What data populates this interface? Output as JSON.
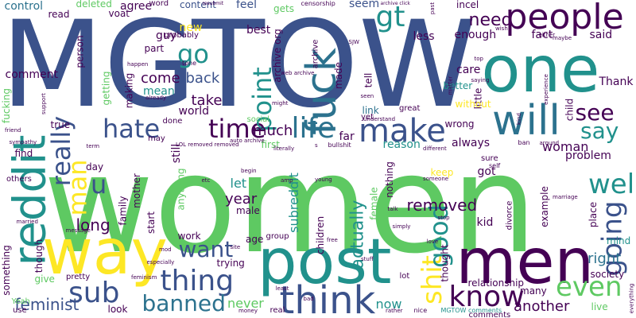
{
  "words": [
    {
      "text": "MGTOW",
      "color": "#3b528b"
    },
    {
      "text": "women",
      "color": "#5ec962"
    },
    {
      "text": "one",
      "color": "#21918c"
    },
    {
      "text": "post",
      "color": "#21918c"
    },
    {
      "text": "men",
      "color": "#440154"
    },
    {
      "text": "way",
      "color": "#fde725"
    },
    {
      "text": "people",
      "color": "#440154"
    },
    {
      "text": "reddit",
      "color": "#21918c"
    },
    {
      "text": "will",
      "color": "#2c728e"
    },
    {
      "text": "fuck",
      "color": "#2c728e"
    },
    {
      "text": "think",
      "color": "#3b528b"
    },
    {
      "text": "make",
      "color": "#3b528b"
    },
    {
      "text": "life",
      "color": "#2c728e"
    },
    {
      "text": "know",
      "color": "#440154"
    },
    {
      "text": "hate",
      "color": "#3b528b"
    },
    {
      "text": "time",
      "color": "#440154"
    },
    {
      "text": "thing",
      "color": "#3b528b"
    },
    {
      "text": "sub",
      "color": "#3b528b"
    },
    {
      "text": "even",
      "color": "#5ec962"
    },
    {
      "text": "see",
      "color": "#440154"
    },
    {
      "text": "say",
      "color": "#21918c"
    },
    {
      "text": "well",
      "color": "#21918c"
    },
    {
      "text": "going",
      "color": "#3b528b"
    },
    {
      "text": "shit",
      "color": "#fde725"
    },
    {
      "text": "gt",
      "color": "#21918c"
    },
    {
      "text": "go",
      "color": "#21918c"
    },
    {
      "text": "point",
      "color": "#21918c"
    },
    {
      "text": "good",
      "color": "#21918c"
    },
    {
      "text": "banned",
      "color": "#2c728e"
    },
    {
      "text": "want",
      "color": "#3b528b"
    },
    {
      "text": "really",
      "color": "#3b528b"
    },
    {
      "text": "man",
      "color": "#fde725"
    },
    {
      "text": "u",
      "color": "#3b528b"
    },
    {
      "text": "need",
      "color": "#440154"
    },
    {
      "text": "removed",
      "color": "#440154"
    },
    {
      "text": "long",
      "color": "#440154"
    },
    {
      "text": "feminist",
      "color": "#3b528b"
    },
    {
      "text": "much",
      "color": "#440154"
    },
    {
      "text": "come",
      "color": "#440154"
    },
    {
      "text": "back",
      "color": "#3b528b"
    },
    {
      "text": "take",
      "color": "#440154"
    },
    {
      "text": "right",
      "color": "#2c728e"
    },
    {
      "text": "another",
      "color": "#440154"
    },
    {
      "text": "actually",
      "color": "#21918c"
    },
    {
      "text": "subreddit",
      "color": "#21918c"
    },
    {
      "text": "let",
      "color": "#21918c"
    },
    {
      "text": "year",
      "color": "#440154"
    },
    {
      "text": "woman",
      "color": "#440154"
    },
    {
      "text": "said",
      "color": "#440154"
    },
    {
      "text": "Thank",
      "color": "#440154"
    },
    {
      "text": "never",
      "color": "#5ec962"
    },
    {
      "text": "now",
      "color": "#21918c"
    },
    {
      "text": "comment",
      "color": "#440154"
    },
    {
      "text": "deleted",
      "color": "#5ec962"
    },
    {
      "text": "agree",
      "color": "#440154"
    },
    {
      "text": "content",
      "color": "#3b528b"
    },
    {
      "text": "feel",
      "color": "#3b528b"
    },
    {
      "text": "gets",
      "color": "#5ec962"
    },
    {
      "text": "seem",
      "color": "#3b528b"
    },
    {
      "text": "incel",
      "color": "#440154"
    },
    {
      "text": "control",
      "color": "#2c728e"
    },
    {
      "text": "read",
      "color": "#440154"
    },
    {
      "text": "voat",
      "color": "#440154"
    },
    {
      "text": "word",
      "color": "#440154"
    },
    {
      "text": "enough",
      "color": "#440154"
    },
    {
      "text": "fact",
      "color": "#440154"
    },
    {
      "text": "less",
      "color": "#440154"
    },
    {
      "text": "guy",
      "color": "#440154"
    },
    {
      "text": "new",
      "color": "#fde725"
    },
    {
      "text": "best",
      "color": "#440154"
    },
    {
      "text": "part",
      "color": "#440154"
    },
    {
      "text": "made",
      "color": "#440154"
    },
    {
      "text": "tell",
      "color": "#440154"
    },
    {
      "text": "care",
      "color": "#440154"
    },
    {
      "text": "better",
      "color": "#21918c"
    },
    {
      "text": "mean",
      "color": "#21918c"
    },
    {
      "text": "link",
      "color": "#2c728e"
    },
    {
      "text": "wrong",
      "color": "#440154"
    },
    {
      "text": "child",
      "color": "#440154"
    },
    {
      "text": "little",
      "color": "#440154"
    },
    {
      "text": "without",
      "color": "#fde725"
    },
    {
      "text": "person",
      "color": "#440154"
    },
    {
      "text": "getting",
      "color": "#5ec962"
    },
    {
      "text": "making",
      "color": "#440154"
    },
    {
      "text": "world",
      "color": "#440154"
    },
    {
      "text": "fucking",
      "color": "#5ec962"
    },
    {
      "text": "true",
      "color": "#440154"
    },
    {
      "text": "first",
      "color": "#5ec962"
    },
    {
      "text": "far",
      "color": "#440154"
    },
    {
      "text": "reason",
      "color": "#21918c"
    },
    {
      "text": "always",
      "color": "#440154"
    },
    {
      "text": "problem",
      "color": "#440154"
    },
    {
      "text": "find",
      "color": "#440154"
    },
    {
      "text": "day",
      "color": "#440154"
    },
    {
      "text": "still",
      "color": "#440154"
    },
    {
      "text": "keep",
      "color": "#fde725"
    },
    {
      "text": "got",
      "color": "#440154"
    },
    {
      "text": "kid",
      "color": "#440154"
    },
    {
      "text": "others",
      "color": "#440154"
    },
    {
      "text": "family",
      "color": "#440154"
    },
    {
      "text": "mother",
      "color": "#440154"
    },
    {
      "text": "start",
      "color": "#440154"
    },
    {
      "text": "male",
      "color": "#440154"
    },
    {
      "text": "work",
      "color": "#440154"
    },
    {
      "text": "age",
      "color": "#440154"
    },
    {
      "text": "trying",
      "color": "#440154"
    },
    {
      "text": "children",
      "color": "#440154"
    },
    {
      "text": "female",
      "color": "#5ec962"
    },
    {
      "text": "thought",
      "color": "#440154"
    },
    {
      "text": "relationship",
      "color": "#440154"
    },
    {
      "text": "society",
      "color": "#440154"
    },
    {
      "text": "mind",
      "color": "#21918c"
    },
    {
      "text": "live",
      "color": "#5ec962"
    },
    {
      "text": "many",
      "color": "#440154"
    },
    {
      "text": "look",
      "color": "#440154"
    },
    {
      "text": "give",
      "color": "#5ec962"
    },
    {
      "text": "something",
      "color": "#440154"
    },
    {
      "text": "anything",
      "color": "#5ec962"
    },
    {
      "text": "place",
      "color": "#440154"
    },
    {
      "text": "example",
      "color": "#440154"
    },
    {
      "text": "divorce",
      "color": "#440154"
    },
    {
      "text": "nothing",
      "color": "#440154"
    },
    {
      "text": "though",
      "color": "#440154"
    },
    {
      "text": "pretty",
      "color": "#440154"
    },
    {
      "text": "Yeah",
      "color": "#5ec962"
    },
    {
      "text": "use",
      "color": "#440154"
    },
    {
      "text": "lot",
      "color": "#440154"
    },
    {
      "text": "group",
      "color": "#440154"
    },
    {
      "text": "comments",
      "color": "#440154"
    },
    {
      "text": "MGTOW comments",
      "color": "#21918c"
    },
    {
      "text": "archive org",
      "color": "#440154"
    },
    {
      "text": "archive",
      "color": "#440154"
    },
    {
      "text": "censorship",
      "color": "#440154"
    },
    {
      "text": "archive click",
      "color": "#440154"
    },
    {
      "text": "resubmit",
      "color": "#440154"
    },
    {
      "text": "probably",
      "color": "#440154"
    },
    {
      "text": "tone",
      "color": "#440154"
    },
    {
      "text": "web archive",
      "color": "#440154"
    },
    {
      "text": "SJW",
      "color": "#440154"
    },
    {
      "text": "seen",
      "color": "#440154"
    },
    {
      "text": "great",
      "color": "#440154"
    },
    {
      "text": "understand",
      "color": "#440154"
    },
    {
      "text": "yet",
      "color": "#440154"
    },
    {
      "text": "social",
      "color": "#5ec962"
    },
    {
      "text": "done",
      "color": "#440154"
    },
    {
      "text": "may",
      "color": "#440154"
    },
    {
      "text": "LOL removed removed",
      "color": "#440154"
    },
    {
      "text": "literally",
      "color": "#440154"
    },
    {
      "text": "bullshit",
      "color": "#440154"
    },
    {
      "text": "different",
      "color": "#440154"
    },
    {
      "text": "around",
      "color": "#440154"
    },
    {
      "text": "ban",
      "color": "#440154"
    },
    {
      "text": "sure",
      "color": "#440154"
    },
    {
      "text": "self",
      "color": "#440154"
    },
    {
      "text": "marriage",
      "color": "#440154"
    },
    {
      "text": "young",
      "color": "#440154"
    },
    {
      "text": "someone",
      "color": "#440154"
    },
    {
      "text": "talk",
      "color": "#440154"
    },
    {
      "text": "stop",
      "color": "#440154"
    },
    {
      "text": "simply",
      "color": "#440154"
    },
    {
      "text": "site",
      "color": "#440154"
    },
    {
      "text": "mod",
      "color": "#440154"
    },
    {
      "text": "especially",
      "color": "#440154"
    },
    {
      "text": "feminism",
      "color": "#440154"
    },
    {
      "text": "least",
      "color": "#440154"
    },
    {
      "text": "bad",
      "color": "#440154"
    },
    {
      "text": "money",
      "color": "#440154"
    },
    {
      "text": "real",
      "color": "#440154"
    },
    {
      "text": "rather",
      "color": "#440154"
    },
    {
      "text": "nice",
      "color": "#440154"
    },
    {
      "text": "stuff",
      "color": "#440154"
    },
    {
      "text": "love",
      "color": "#440154"
    },
    {
      "text": "everything",
      "color": "#440154"
    },
    {
      "text": "married",
      "color": "#440154"
    },
    {
      "text": "friend",
      "color": "#440154"
    },
    {
      "text": "sympathy",
      "color": "#440154"
    },
    {
      "text": "support",
      "color": "#440154"
    },
    {
      "text": "term",
      "color": "#440154"
    },
    {
      "text": "etc",
      "color": "#440154"
    },
    {
      "text": "amp",
      "color": "#440154"
    },
    {
      "text": "either",
      "color": "#440154"
    },
    {
      "text": "maybe",
      "color": "#440154"
    },
    {
      "text": "top",
      "color": "#440154"
    },
    {
      "text": "saying",
      "color": "#440154"
    },
    {
      "text": "experience",
      "color": "#440154"
    },
    {
      "text": "kind",
      "color": "#440154"
    },
    {
      "text": "matter",
      "color": "#440154"
    },
    {
      "text": "happen",
      "color": "#440154"
    },
    {
      "text": "already",
      "color": "#440154"
    },
    {
      "text": "might",
      "color": "#440154"
    },
    {
      "text": "free",
      "color": "#440154"
    },
    {
      "text": "begin",
      "color": "#440154"
    },
    {
      "text": "auto archive",
      "color": "#440154"
    },
    {
      "text": "past",
      "color": "#440154"
    },
    {
      "text": "wish",
      "color": "#440154"
    },
    {
      "text": "message",
      "color": "#440154"
    },
    {
      "text": "s",
      "color": "#440154"
    }
  ]
}
